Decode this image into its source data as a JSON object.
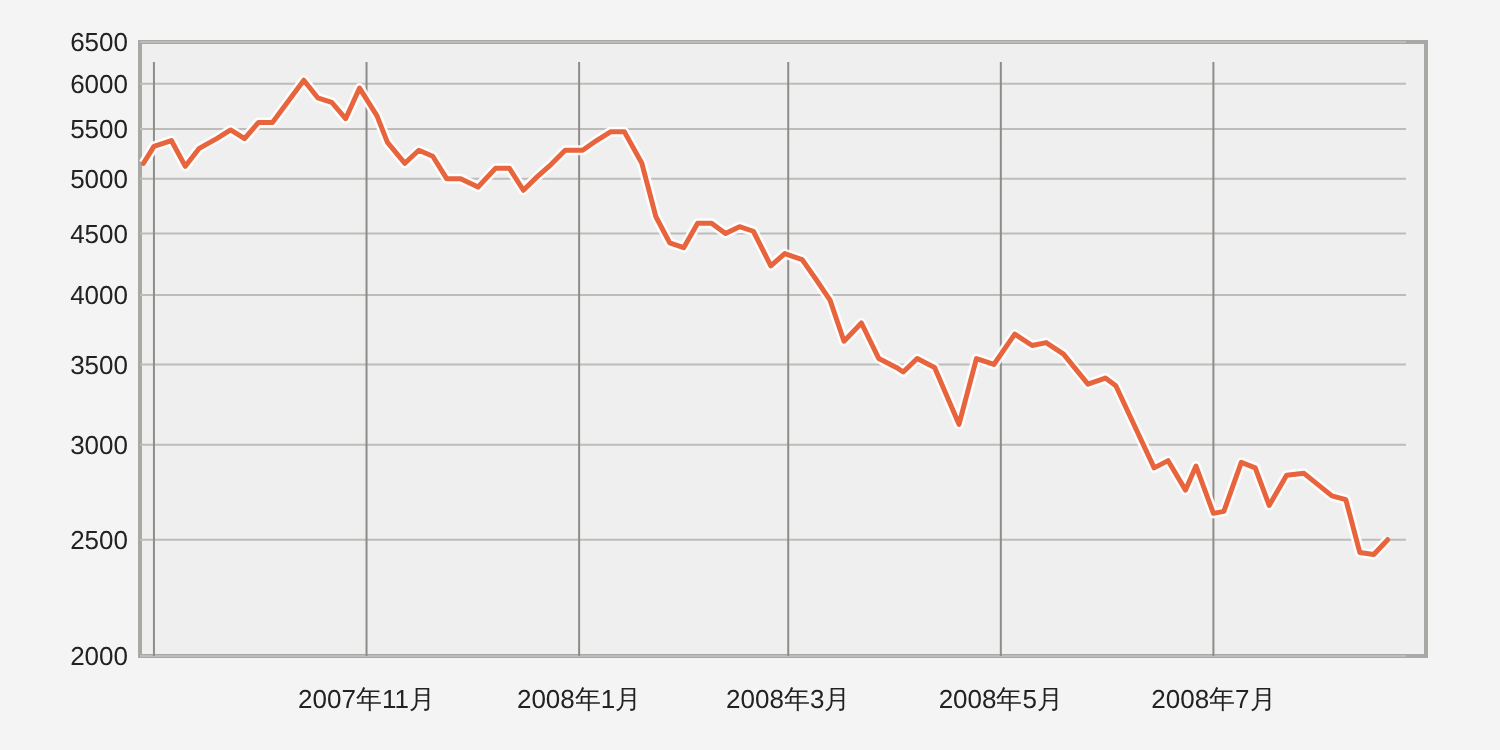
{
  "chart_data": {
    "type": "line",
    "log": true,
    "grid": true,
    "marker": "none",
    "line_style": "solid",
    "xlim": [
      "2007-08-28",
      "2008-08-31"
    ],
    "ylim": [
      2000,
      6500
    ],
    "yticks": [
      2000,
      2500,
      3000,
      3500,
      4000,
      4500,
      5000,
      5500,
      6000,
      6500
    ],
    "xticks": [
      {
        "value": "2007-09-01",
        "label": null
      },
      {
        "value": "2007-11-01",
        "label": "2007年11月"
      },
      {
        "value": "2008-01-01",
        "label": "2008年1月"
      },
      {
        "value": "2008-03-01",
        "label": "2008年3月"
      },
      {
        "value": "2008-05-01",
        "label": "2008年5月"
      },
      {
        "value": "2008-07-01",
        "label": "2008年7月"
      }
    ],
    "series": [
      {
        "color": "#e8643c",
        "x": [
          "2007-08-29",
          "2007-09-01",
          "2007-09-06",
          "2007-09-10",
          "2007-09-14",
          "2007-09-19",
          "2007-09-23",
          "2007-09-27",
          "2007-10-01",
          "2007-10-05",
          "2007-10-14",
          "2007-10-18",
          "2007-10-22",
          "2007-10-26",
          "2007-10-30",
          "2007-11-04",
          "2007-11-07",
          "2007-11-12",
          "2007-11-16",
          "2007-11-20",
          "2007-11-24",
          "2007-11-28",
          "2007-12-03",
          "2007-12-08",
          "2007-12-12",
          "2007-12-16",
          "2007-12-20",
          "2007-12-24",
          "2007-12-28",
          "2008-01-02",
          "2008-01-06",
          "2008-01-10",
          "2008-01-14",
          "2008-01-19",
          "2008-01-23",
          "2008-01-27",
          "2008-01-31",
          "2008-02-04",
          "2008-02-08",
          "2008-02-12",
          "2008-02-16",
          "2008-02-20",
          "2008-02-25",
          "2008-02-29",
          "2008-03-05",
          "2008-03-09",
          "2008-03-13",
          "2008-03-17",
          "2008-03-22",
          "2008-03-27",
          "2008-04-01",
          "2008-04-03",
          "2008-04-07",
          "2008-04-12",
          "2008-04-19",
          "2008-04-24",
          "2008-04-29",
          "2008-05-05",
          "2008-05-10",
          "2008-05-14",
          "2008-05-19",
          "2008-05-26",
          "2008-05-31",
          "2008-06-03",
          "2008-06-14",
          "2008-06-18",
          "2008-06-23",
          "2008-06-26",
          "2008-07-01",
          "2008-07-04",
          "2008-07-09",
          "2008-07-13",
          "2008-07-17",
          "2008-07-22",
          "2008-07-27",
          "2008-08-04",
          "2008-08-08",
          "2008-08-12",
          "2008-08-16",
          "2008-08-20"
        ],
        "values": [
          5150,
          5320,
          5380,
          5120,
          5300,
          5400,
          5490,
          5400,
          5570,
          5570,
          6040,
          5840,
          5790,
          5610,
          5950,
          5640,
          5360,
          5150,
          5280,
          5220,
          5000,
          5000,
          4920,
          5100,
          5100,
          4890,
          5020,
          5140,
          5280,
          5280,
          5380,
          5470,
          5470,
          5150,
          4650,
          4420,
          4380,
          4590,
          4590,
          4500,
          4560,
          4520,
          4230,
          4330,
          4280,
          4120,
          3960,
          3660,
          3790,
          3540,
          3480,
          3450,
          3540,
          3480,
          3120,
          3540,
          3500,
          3710,
          3630,
          3650,
          3570,
          3370,
          3410,
          3360,
          2870,
          2910,
          2750,
          2880,
          2630,
          2640,
          2900,
          2870,
          2670,
          2830,
          2840,
          2720,
          2700,
          2440,
          2430,
          2500
        ]
      }
    ]
  }
}
